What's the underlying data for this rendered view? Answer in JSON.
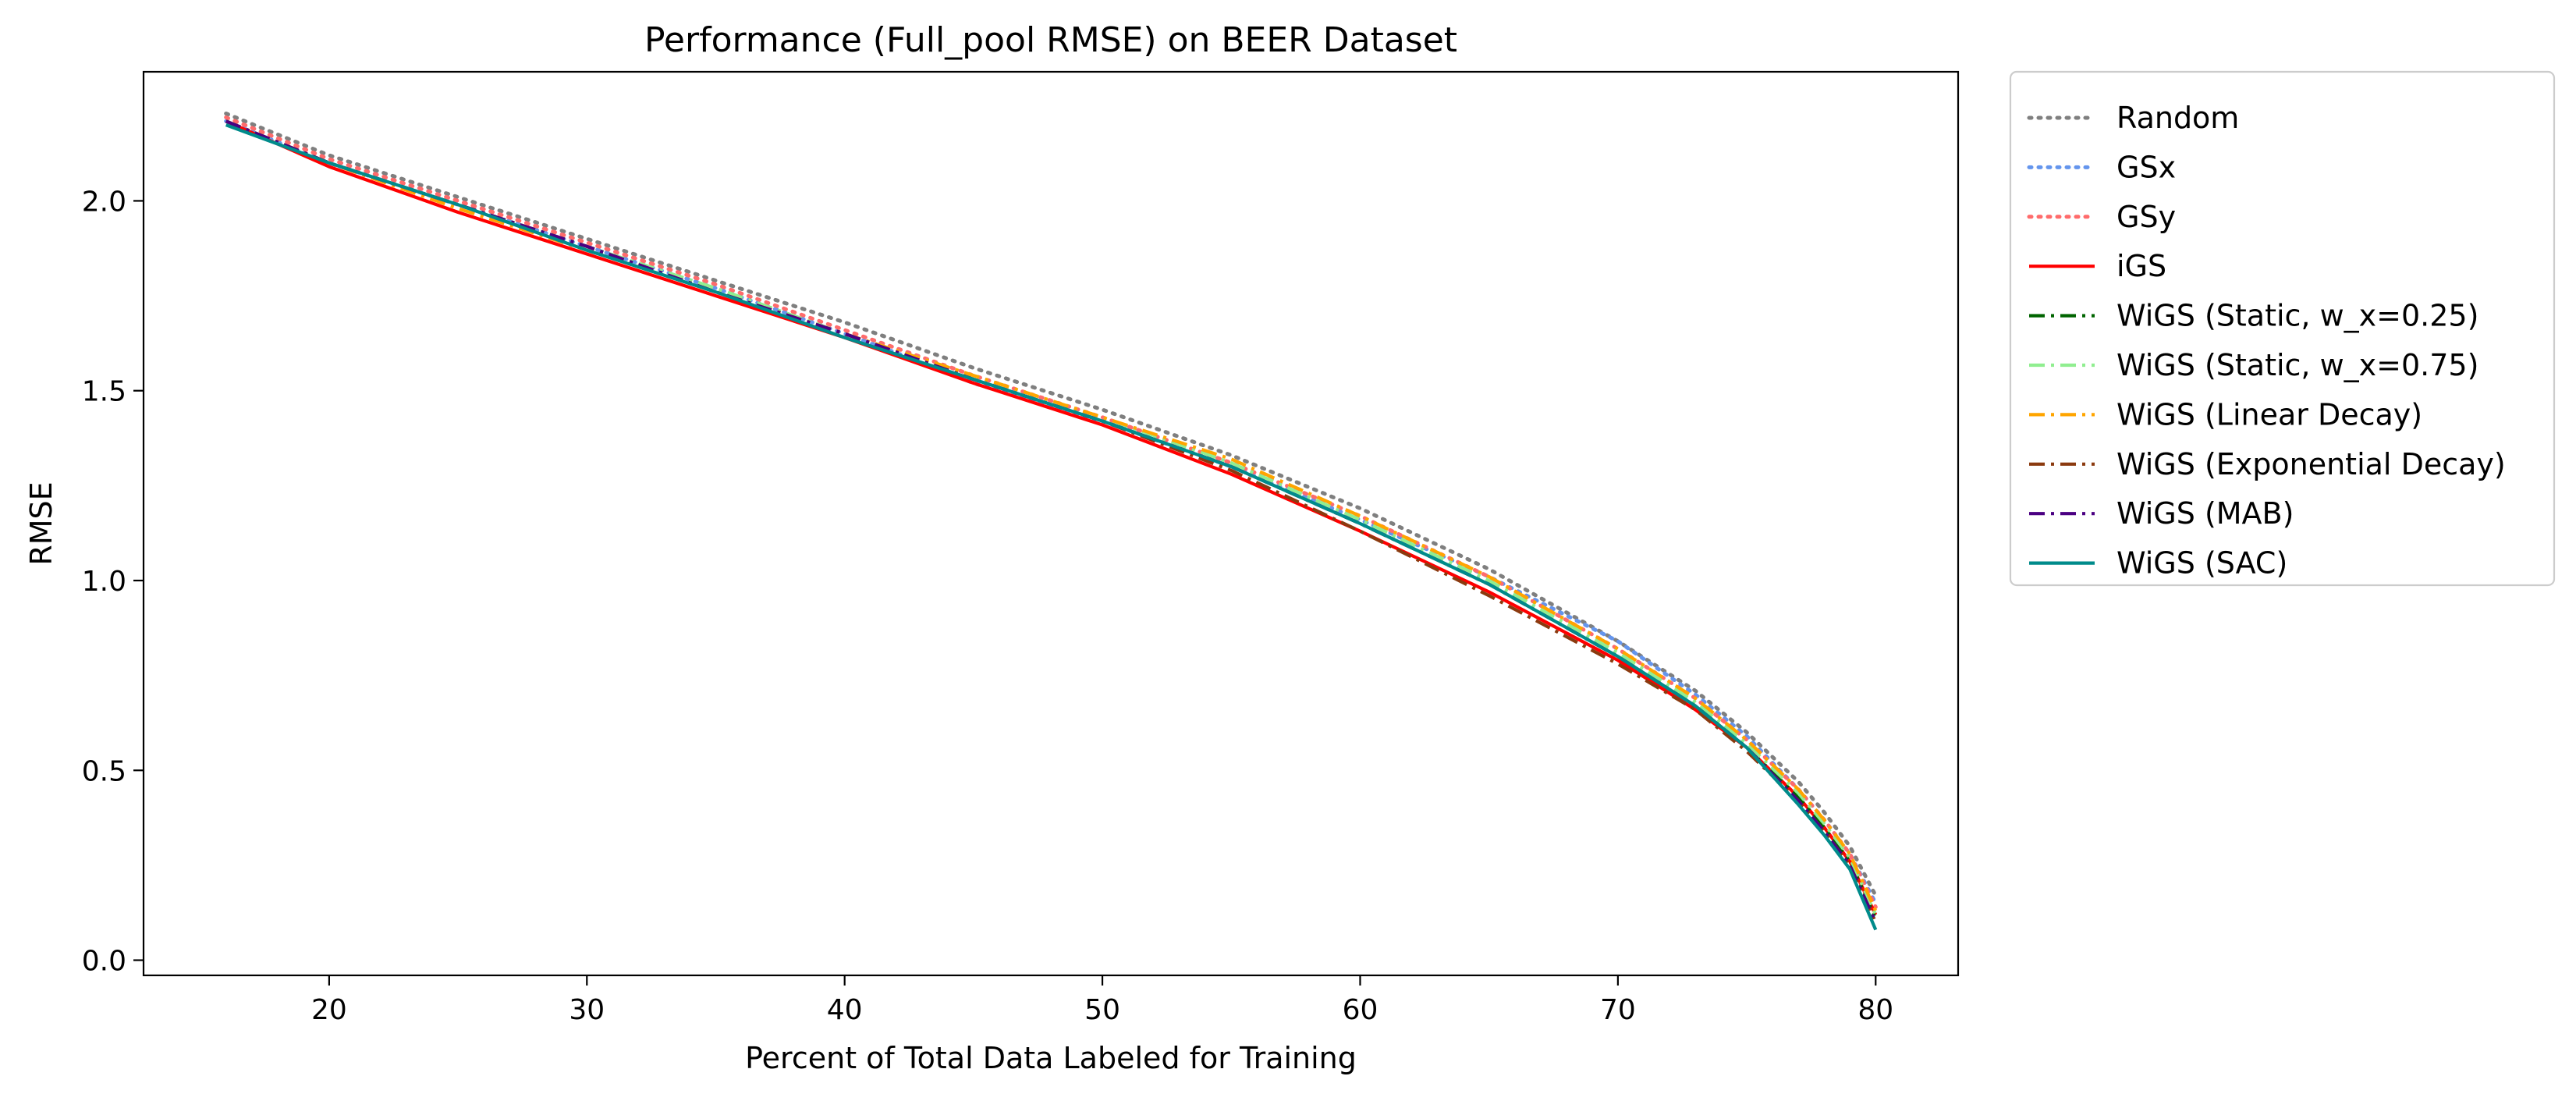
{
  "chart_data": {
    "type": "line",
    "title": "Performance (Full_pool RMSE) on BEER Dataset",
    "xlabel": "Percent of Total Data Labeled for Training",
    "ylabel": "RMSE",
    "xlim": [
      12.8,
      83.2
    ],
    "ylim": [
      -0.04,
      2.34
    ],
    "xticks": [
      20,
      30,
      40,
      50,
      60,
      70,
      80
    ],
    "yticks": [
      0.0,
      0.5,
      1.0,
      1.5,
      2.0
    ],
    "grid": false,
    "legend_position": "outside-right",
    "series": [
      {
        "name": "Random",
        "color": "#7f7f7f",
        "style": "dotted",
        "x": [
          16,
          20,
          25,
          30,
          35,
          40,
          45,
          50,
          55,
          60,
          65,
          70,
          73,
          75,
          77,
          78,
          79,
          80
        ],
        "y": [
          2.23,
          2.12,
          2.01,
          1.9,
          1.79,
          1.68,
          1.56,
          1.45,
          1.33,
          1.19,
          1.03,
          0.84,
          0.71,
          0.6,
          0.47,
          0.39,
          0.3,
          0.17
        ]
      },
      {
        "name": "GSx",
        "color": "#6495ed",
        "style": "dotted",
        "x": [
          16,
          20,
          25,
          30,
          35,
          40,
          42,
          45,
          50,
          55,
          60,
          65,
          70,
          73,
          75,
          77,
          78,
          79,
          80
        ],
        "y": [
          2.21,
          2.1,
          1.99,
          1.88,
          1.77,
          1.65,
          1.6,
          1.52,
          1.42,
          1.3,
          1.16,
          1.01,
          0.84,
          0.7,
          0.59,
          0.45,
          0.37,
          0.28,
          0.15
        ]
      },
      {
        "name": "GSy",
        "color": "#ff6b6b",
        "style": "dotted",
        "x": [
          16,
          20,
          25,
          30,
          35,
          40,
          45,
          50,
          55,
          60,
          65,
          70,
          73,
          75,
          77,
          78,
          79,
          80
        ],
        "y": [
          2.22,
          2.11,
          2.0,
          1.89,
          1.78,
          1.66,
          1.54,
          1.43,
          1.31,
          1.17,
          1.01,
          0.82,
          0.69,
          0.58,
          0.45,
          0.37,
          0.28,
          0.14
        ]
      },
      {
        "name": "iGS",
        "color": "#ff0000",
        "style": "solid",
        "x": [
          16,
          20,
          25,
          30,
          35,
          40,
          45,
          50,
          55,
          60,
          65,
          70,
          73,
          75,
          77,
          78,
          79,
          80
        ],
        "y": [
          2.21,
          2.09,
          1.97,
          1.86,
          1.75,
          1.64,
          1.52,
          1.41,
          1.28,
          1.13,
          0.97,
          0.79,
          0.66,
          0.56,
          0.43,
          0.35,
          0.26,
          0.12
        ]
      },
      {
        "name": "WiGS (Static, w_x=0.25)",
        "color": "#006400",
        "style": "dashdot",
        "x": [
          16,
          20,
          25,
          30,
          35,
          40,
          45,
          50,
          55,
          60,
          65,
          70,
          73,
          75,
          77,
          78,
          79,
          80
        ],
        "y": [
          2.21,
          2.1,
          1.99,
          1.88,
          1.76,
          1.65,
          1.53,
          1.42,
          1.3,
          1.15,
          0.99,
          0.8,
          0.67,
          0.56,
          0.43,
          0.35,
          0.26,
          0.11
        ]
      },
      {
        "name": "WiGS (Static, w_x=0.75)",
        "color": "#90ee90",
        "style": "dashdot",
        "x": [
          16,
          20,
          25,
          30,
          35,
          40,
          45,
          50,
          55,
          60,
          65,
          70,
          73,
          75,
          77,
          78,
          79,
          80
        ],
        "y": [
          2.21,
          2.1,
          1.99,
          1.88,
          1.77,
          1.65,
          1.54,
          1.43,
          1.31,
          1.16,
          1.0,
          0.81,
          0.68,
          0.57,
          0.44,
          0.36,
          0.27,
          0.12
        ]
      },
      {
        "name": "WiGS (Linear Decay)",
        "color": "#ffa500",
        "style": "dashdot",
        "x": [
          16,
          20,
          25,
          30,
          35,
          40,
          45,
          50,
          55,
          60,
          65,
          70,
          73,
          75,
          77,
          78,
          79,
          80
        ],
        "y": [
          2.21,
          2.1,
          1.98,
          1.87,
          1.76,
          1.65,
          1.54,
          1.43,
          1.32,
          1.17,
          1.01,
          0.82,
          0.69,
          0.58,
          0.45,
          0.37,
          0.28,
          0.13
        ]
      },
      {
        "name": "WiGS (Exponential Decay)",
        "color": "#8b3a0f",
        "style": "dashdot",
        "x": [
          16,
          20,
          25,
          30,
          35,
          40,
          45,
          50,
          55,
          60,
          65,
          70,
          73,
          75,
          77,
          78,
          79,
          80
        ],
        "y": [
          2.21,
          2.1,
          1.99,
          1.88,
          1.76,
          1.65,
          1.53,
          1.42,
          1.29,
          1.13,
          0.96,
          0.78,
          0.66,
          0.55,
          0.42,
          0.34,
          0.25,
          0.1
        ]
      },
      {
        "name": "WiGS (MAB)",
        "color": "#4b0082",
        "style": "dashdot",
        "x": [
          16,
          20,
          25,
          30,
          35,
          40,
          45,
          50,
          55,
          60,
          65,
          70,
          73,
          75,
          77,
          78,
          79,
          80
        ],
        "y": [
          2.21,
          2.1,
          1.99,
          1.88,
          1.76,
          1.65,
          1.53,
          1.42,
          1.3,
          1.15,
          0.99,
          0.8,
          0.67,
          0.56,
          0.42,
          0.34,
          0.25,
          0.1
        ]
      },
      {
        "name": "WiGS (SAC)",
        "color": "#008b8b",
        "style": "solid",
        "x": [
          16,
          20,
          25,
          30,
          35,
          40,
          45,
          50,
          55,
          60,
          65,
          70,
          73,
          75,
          77,
          78,
          79,
          80
        ],
        "y": [
          2.2,
          2.1,
          1.99,
          1.87,
          1.76,
          1.64,
          1.53,
          1.42,
          1.3,
          1.15,
          0.99,
          0.8,
          0.67,
          0.56,
          0.41,
          0.33,
          0.24,
          0.08
        ]
      }
    ]
  }
}
